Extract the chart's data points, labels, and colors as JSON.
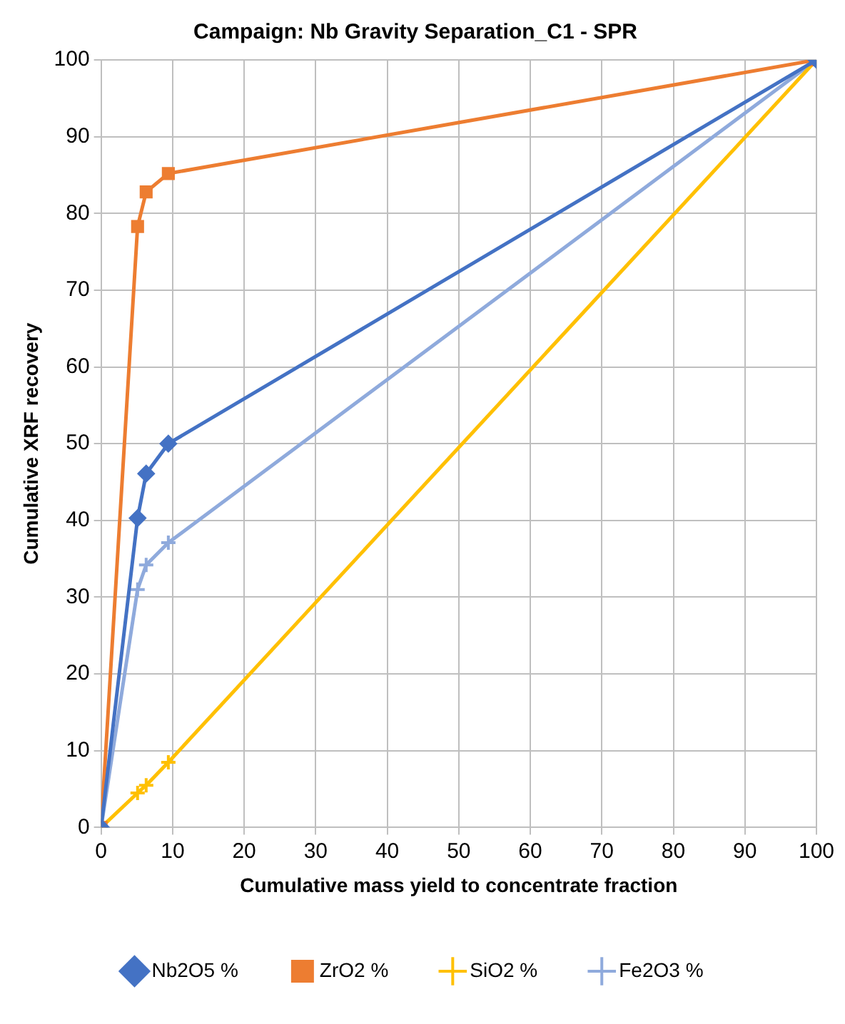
{
  "chart_data": {
    "type": "line",
    "title": "Campaign: Nb Gravity Separation_C1 - SPR",
    "xlabel": "Cumulative mass yield to concentrate fraction",
    "ylabel": "Cumulative XRF recovery",
    "x": [
      0,
      5.1,
      6.3,
      9.4,
      100
    ],
    "series": [
      {
        "name": "Nb2O5 %",
        "color": "#4472c4",
        "marker": "diamond",
        "values": [
          0,
          40.3,
          46.1,
          50,
          100
        ]
      },
      {
        "name": "ZrO2 %",
        "color": "#ed7d31",
        "marker": "square",
        "values": [
          0,
          78.3,
          82.8,
          85.2,
          100
        ]
      },
      {
        "name": "SiO2 %",
        "color": "#ffc000",
        "marker": "cross",
        "values": [
          0,
          4.5,
          5.5,
          8.5,
          100
        ]
      },
      {
        "name": "Fe2O3 %",
        "color": "#8faadc",
        "marker": "cross",
        "values": [
          0,
          31,
          34.2,
          37.1,
          100
        ]
      }
    ],
    "xlim": [
      0,
      100
    ],
    "xticks": [
      0,
      10,
      20,
      30,
      40,
      50,
      60,
      70,
      80,
      90,
      100
    ],
    "ylim": [
      0,
      100
    ],
    "yticks": [
      0,
      10,
      20,
      30,
      40,
      50,
      60,
      70,
      80,
      90,
      100
    ],
    "grid": true,
    "legend": "bottom",
    "line_style": "solid"
  }
}
